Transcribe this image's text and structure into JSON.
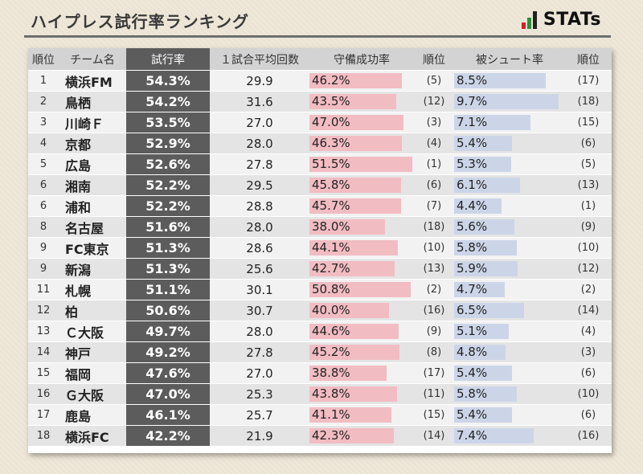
{
  "title": "ハイプレス試行率ランキング",
  "logo": {
    "text": "STATs",
    "colors": [
      "#c8232c",
      "#2f8f3a",
      "#222222"
    ]
  },
  "colors": {
    "highlight": "#5c5c5c",
    "save_bar": "#f2bcc3",
    "shot_bar": "#ccd5e8"
  },
  "chart_data": {
    "type": "table",
    "title": "ハイプレス試行率ランキング",
    "columns": [
      "順位",
      "チーム名",
      "試行率",
      "１試合平均回数",
      "守備成功率",
      "順位",
      "被シュート率",
      "順位"
    ],
    "save_max": 51.5,
    "shot_max": 9.7,
    "rows": [
      {
        "rank": "1",
        "team": "横浜FM",
        "rate": "54.3%",
        "avg": "29.9",
        "save": "46.2%",
        "save_value": 46.2,
        "save_rank": "(5)",
        "shot": "8.5%",
        "shot_value": 8.5,
        "shot_rank": "(17)"
      },
      {
        "rank": "2",
        "team": "鳥栖",
        "rate": "54.2%",
        "avg": "31.6",
        "save": "43.5%",
        "save_value": 43.5,
        "save_rank": "(12)",
        "shot": "9.7%",
        "shot_value": 9.7,
        "shot_rank": "(18)"
      },
      {
        "rank": "3",
        "team": "川崎Ｆ",
        "rate": "53.5%",
        "avg": "27.0",
        "save": "47.0%",
        "save_value": 47.0,
        "save_rank": "(3)",
        "shot": "7.1%",
        "shot_value": 7.1,
        "shot_rank": "(15)"
      },
      {
        "rank": "4",
        "team": "京都",
        "rate": "52.9%",
        "avg": "28.0",
        "save": "46.3%",
        "save_value": 46.3,
        "save_rank": "(4)",
        "shot": "5.4%",
        "shot_value": 5.4,
        "shot_rank": "(6)"
      },
      {
        "rank": "5",
        "team": "広島",
        "rate": "52.6%",
        "avg": "27.8",
        "save": "51.5%",
        "save_value": 51.5,
        "save_rank": "(1)",
        "shot": "5.3%",
        "shot_value": 5.3,
        "shot_rank": "(5)"
      },
      {
        "rank": "6",
        "team": "湘南",
        "rate": "52.2%",
        "avg": "29.5",
        "save": "45.8%",
        "save_value": 45.8,
        "save_rank": "(6)",
        "shot": "6.1%",
        "shot_value": 6.1,
        "shot_rank": "(13)"
      },
      {
        "rank": "6",
        "team": "浦和",
        "rate": "52.2%",
        "avg": "28.8",
        "save": "45.7%",
        "save_value": 45.7,
        "save_rank": "(7)",
        "shot": "4.4%",
        "shot_value": 4.4,
        "shot_rank": "(1)"
      },
      {
        "rank": "8",
        "team": "名古屋",
        "rate": "51.6%",
        "avg": "28.0",
        "save": "38.0%",
        "save_value": 38.0,
        "save_rank": "(18)",
        "shot": "5.6%",
        "shot_value": 5.6,
        "shot_rank": "(9)"
      },
      {
        "rank": "9",
        "team": "FC東京",
        "rate": "51.3%",
        "avg": "28.6",
        "save": "44.1%",
        "save_value": 44.1,
        "save_rank": "(10)",
        "shot": "5.8%",
        "shot_value": 5.8,
        "shot_rank": "(10)"
      },
      {
        "rank": "9",
        "team": "新潟",
        "rate": "51.3%",
        "avg": "25.6",
        "save": "42.7%",
        "save_value": 42.7,
        "save_rank": "(13)",
        "shot": "5.9%",
        "shot_value": 5.9,
        "shot_rank": "(12)"
      },
      {
        "rank": "11",
        "team": "札幌",
        "rate": "51.1%",
        "avg": "30.1",
        "save": "50.8%",
        "save_value": 50.8,
        "save_rank": "(2)",
        "shot": "4.7%",
        "shot_value": 4.7,
        "shot_rank": "(2)"
      },
      {
        "rank": "12",
        "team": "柏",
        "rate": "50.6%",
        "avg": "30.7",
        "save": "40.0%",
        "save_value": 40.0,
        "save_rank": "(16)",
        "shot": "6.5%",
        "shot_value": 6.5,
        "shot_rank": "(14)"
      },
      {
        "rank": "13",
        "team": "Ｃ大阪",
        "rate": "49.7%",
        "avg": "28.0",
        "save": "44.6%",
        "save_value": 44.6,
        "save_rank": "(9)",
        "shot": "5.1%",
        "shot_value": 5.1,
        "shot_rank": "(4)"
      },
      {
        "rank": "14",
        "team": "神戸",
        "rate": "49.2%",
        "avg": "27.8",
        "save": "45.2%",
        "save_value": 45.2,
        "save_rank": "(8)",
        "shot": "4.8%",
        "shot_value": 4.8,
        "shot_rank": "(3)"
      },
      {
        "rank": "15",
        "team": "福岡",
        "rate": "47.6%",
        "avg": "27.0",
        "save": "38.8%",
        "save_value": 38.8,
        "save_rank": "(17)",
        "shot": "5.4%",
        "shot_value": 5.4,
        "shot_rank": "(6)"
      },
      {
        "rank": "16",
        "team": "Ｇ大阪",
        "rate": "47.0%",
        "avg": "25.3",
        "save": "43.8%",
        "save_value": 43.8,
        "save_rank": "(11)",
        "shot": "5.8%",
        "shot_value": 5.8,
        "shot_rank": "(10)"
      },
      {
        "rank": "17",
        "team": "鹿島",
        "rate": "46.1%",
        "avg": "25.7",
        "save": "41.1%",
        "save_value": 41.1,
        "save_rank": "(15)",
        "shot": "5.4%",
        "shot_value": 5.4,
        "shot_rank": "(6)"
      },
      {
        "rank": "18",
        "team": "横浜FC",
        "rate": "42.2%",
        "avg": "21.9",
        "save": "42.3%",
        "save_value": 42.3,
        "save_rank": "(14)",
        "shot": "7.4%",
        "shot_value": 7.4,
        "shot_rank": "(16)"
      }
    ]
  }
}
